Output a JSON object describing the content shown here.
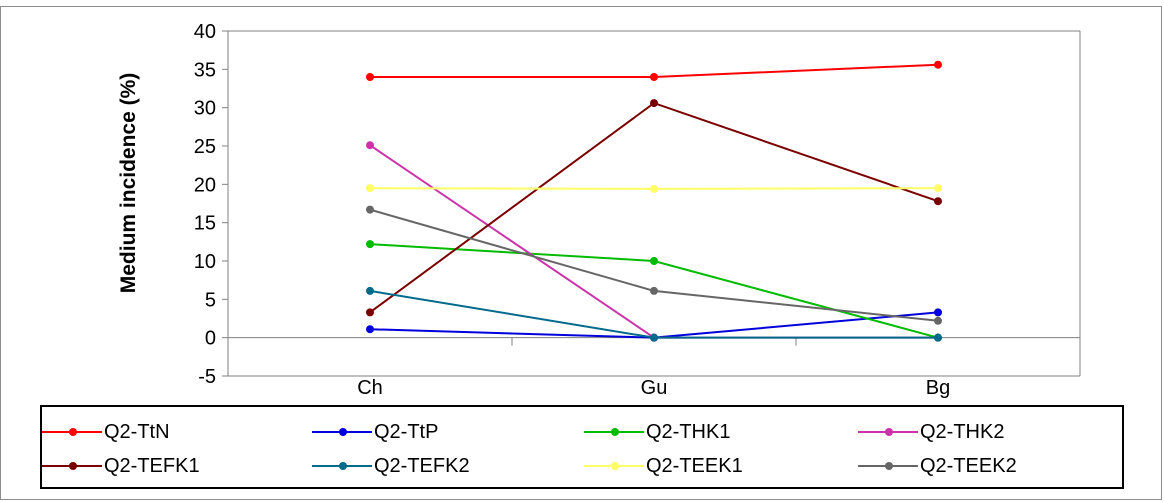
{
  "chart_data": {
    "type": "line",
    "title": "",
    "xlabel": "",
    "ylabel": "Medium incidence (%)",
    "ylim": [
      -5,
      40
    ],
    "y_ticks": [
      -5,
      0,
      5,
      10,
      15,
      20,
      25,
      30,
      35,
      40
    ],
    "categories": [
      "Ch",
      "Gu",
      "Bg"
    ],
    "grid": false,
    "legend_position": "bottom",
    "series": [
      {
        "name": "Q2-TtN",
        "color": "#ff0000",
        "values": [
          34,
          34,
          35.6
        ]
      },
      {
        "name": "Q2-TtP",
        "color": "#0000dd",
        "values": [
          1.1,
          0,
          3.3
        ]
      },
      {
        "name": "Q2-THK1",
        "color": "#00bb00",
        "values": [
          12.2,
          10,
          0
        ]
      },
      {
        "name": "Q2-THK2",
        "color": "#cc33aa",
        "values": [
          25.1,
          0,
          0
        ]
      },
      {
        "name": "Q2-TEFK1",
        "color": "#7a0000",
        "values": [
          3.3,
          30.6,
          17.8
        ]
      },
      {
        "name": "Q2-TEFK2",
        "color": "#006a8a",
        "values": [
          6.1,
          0,
          0
        ]
      },
      {
        "name": "Q2-TEEK1",
        "color": "#ffff66",
        "values": [
          19.5,
          19.4,
          19.5
        ]
      },
      {
        "name": "Q2-TEEK2",
        "color": "#666666",
        "values": [
          16.7,
          6.1,
          2.2
        ]
      }
    ]
  }
}
